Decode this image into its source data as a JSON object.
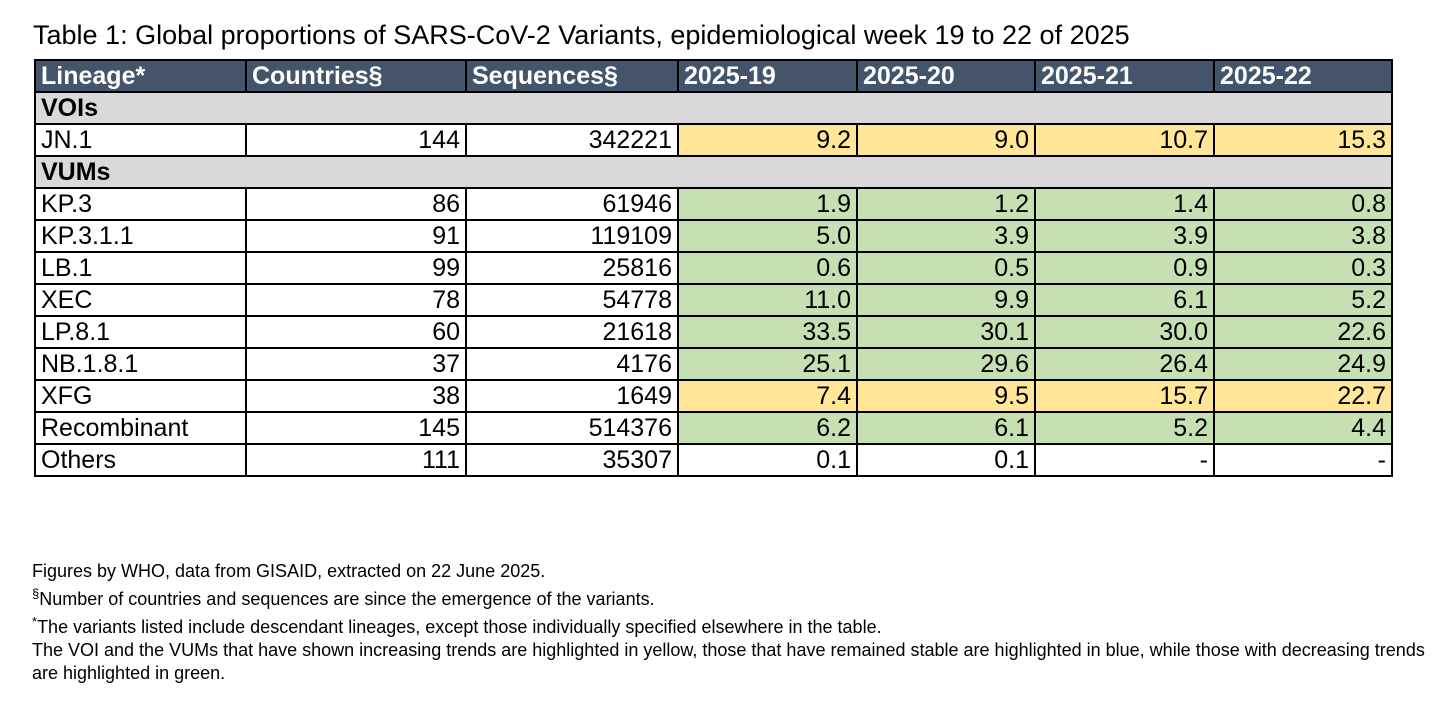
{
  "caption": "Table 1: Global proportions of SARS-CoV-2 Variants, epidemiological week 19 to 22 of 2025",
  "headers": [
    "Lineage*",
    "Countries§",
    "Sequences§",
    "2025-19",
    "2025-20",
    "2025-21",
    "2025-22"
  ],
  "groups": {
    "voi": "VOIs",
    "vum": "VUMs"
  },
  "rows": [
    {
      "lineage": "JN.1",
      "countries": "144",
      "sequences": "342221",
      "w19": "9.2",
      "w20": "9.0",
      "w21": "10.7",
      "w22": "15.3",
      "trend": "yellow"
    },
    {
      "lineage": "KP.3",
      "countries": "86",
      "sequences": "61946",
      "w19": "1.9",
      "w20": "1.2",
      "w21": "1.4",
      "w22": "0.8",
      "trend": "green"
    },
    {
      "lineage": "KP.3.1.1",
      "countries": "91",
      "sequences": "119109",
      "w19": "5.0",
      "w20": "3.9",
      "w21": "3.9",
      "w22": "3.8",
      "trend": "green"
    },
    {
      "lineage": "LB.1",
      "countries": "99",
      "sequences": "25816",
      "w19": "0.6",
      "w20": "0.5",
      "w21": "0.9",
      "w22": "0.3",
      "trend": "green"
    },
    {
      "lineage": "XEC",
      "countries": "78",
      "sequences": "54778",
      "w19": "11.0",
      "w20": "9.9",
      "w21": "6.1",
      "w22": "5.2",
      "trend": "green"
    },
    {
      "lineage": "LP.8.1",
      "countries": "60",
      "sequences": "21618",
      "w19": "33.5",
      "w20": "30.1",
      "w21": "30.0",
      "w22": "22.6",
      "trend": "green"
    },
    {
      "lineage": "NB.1.8.1",
      "countries": "37",
      "sequences": "4176",
      "w19": "25.1",
      "w20": "29.6",
      "w21": "26.4",
      "w22": "24.9",
      "trend": "green"
    },
    {
      "lineage": "XFG",
      "countries": "38",
      "sequences": "1649",
      "w19": "7.4",
      "w20": "9.5",
      "w21": "15.7",
      "w22": "22.7",
      "trend": "yellow"
    },
    {
      "lineage": "Recombinant",
      "countries": "145",
      "sequences": "514376",
      "w19": "6.2",
      "w20": "6.1",
      "w21": "5.2",
      "w22": "4.4",
      "trend": "green"
    },
    {
      "lineage": "Others",
      "countries": "111",
      "sequences": "35307",
      "w19": "0.1",
      "w20": "0.1",
      "w21": "-",
      "w22": "-",
      "trend": "white"
    }
  ],
  "notes": {
    "source": "Figures by WHO, data from GISAID, extracted on 22 June 2025.",
    "section_mark": "§",
    "section_note": "Number of countries and sequences are since the emergence of the variants.",
    "star_mark": "*",
    "star_note": "The variants listed include descendant lineages, except those individually specified elsewhere in the table.",
    "trend_note": "The VOI and the VUMs that have shown increasing trends are highlighted in yellow, those that have remained stable are highlighted in blue, while those with decreasing trends are highlighted in green."
  },
  "colors": {
    "header_bg": "#44546a",
    "group_bg": "#d9d9d9",
    "increasing": "#ffe699",
    "decreasing": "#c6e0b4"
  }
}
